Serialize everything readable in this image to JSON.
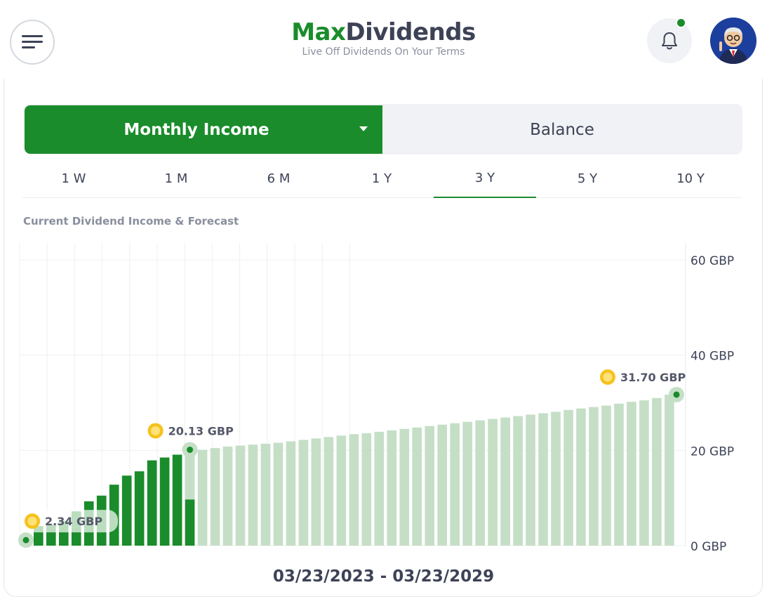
{
  "brand": {
    "name_part1": "Max",
    "name_part2": "Dividends",
    "tagline": "Live Off Dividends On Your Terms"
  },
  "header": {
    "menu_icon": "hamburger-menu-icon",
    "bell_icon": "bell-icon",
    "notification_dot": true,
    "accent": "#1a8c2b"
  },
  "toggle": {
    "active_label": "Monthly Income",
    "inactive_label": "Balance"
  },
  "tabs": [
    {
      "label": "1 W"
    },
    {
      "label": "1 M"
    },
    {
      "label": "6 M"
    },
    {
      "label": "1 Y"
    },
    {
      "label": "3 Y",
      "active": true
    },
    {
      "label": "5 Y"
    },
    {
      "label": "10 Y"
    }
  ],
  "chart_title": "Current Dividend Income & Forecast",
  "date_range": "03/23/2023 - 03/23/2029",
  "chart_data": {
    "type": "bar",
    "ylim": [
      0,
      60
    ],
    "ytick_values": [
      0,
      20,
      40,
      60
    ],
    "ytick_labels": [
      "0 GBP",
      "20 GBP",
      "40 GBP",
      "60 GBP"
    ],
    "grid": true,
    "unit": "GBP",
    "colors": {
      "actual": "#1a8c2b",
      "forecast": "#c5dfc7"
    },
    "series": [
      {
        "values": [
          2.34,
          4.1,
          4.4,
          5.2,
          7.2,
          9.3,
          10.5,
          12.8,
          14.7,
          15.6,
          17.9,
          18.5,
          19.1,
          9.7
        ]
      },
      {
        "values": [
          20.13,
          20.5,
          20.8,
          21.0,
          21.2,
          21.4,
          21.6,
          21.9,
          22.2,
          22.5,
          22.8,
          23.1,
          23.4,
          23.6,
          23.9,
          24.2,
          24.5,
          24.8,
          25.1,
          25.4,
          25.7,
          26.0,
          26.3,
          26.6,
          26.9,
          27.2,
          27.5,
          27.8,
          28.1,
          28.5,
          28.8,
          29.1,
          29.4,
          29.8,
          30.2,
          30.5,
          31.0,
          31.7
        ]
      }
    ],
    "annotations": [
      {
        "label": "2.34 GBP",
        "value": 2.34,
        "bar_index": 0
      },
      {
        "label": "20.13 GBP",
        "value": 20.13,
        "bar_index": 12
      },
      {
        "label": "31.70 GBP",
        "value": 31.7,
        "bar_index": 48
      }
    ]
  }
}
